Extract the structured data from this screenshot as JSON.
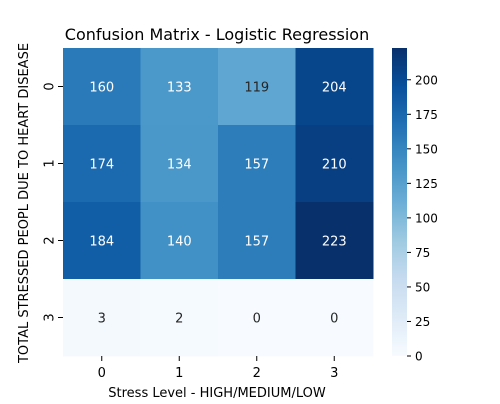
{
  "chart_data": {
    "type": "heatmap",
    "title": "Confusion Matrix - Logistic Regression",
    "xlabel": "Stress Level  - HIGH/MEDIUM/LOW",
    "ylabel": "TOTAL STRESSED PEOPL DUE TO HEART DISEASE",
    "x_categories": [
      "0",
      "1",
      "2",
      "3"
    ],
    "y_categories": [
      "0",
      "1",
      "2",
      "3"
    ],
    "values": [
      [
        160,
        133,
        119,
        204
      ],
      [
        174,
        134,
        157,
        210
      ],
      [
        184,
        140,
        157,
        223
      ],
      [
        3,
        2,
        0,
        0
      ]
    ],
    "colormap": "Blues",
    "vmin": 0,
    "vmax": 223,
    "colorbar_ticks": [
      0,
      25,
      50,
      75,
      100,
      125,
      150,
      175,
      200
    ]
  }
}
